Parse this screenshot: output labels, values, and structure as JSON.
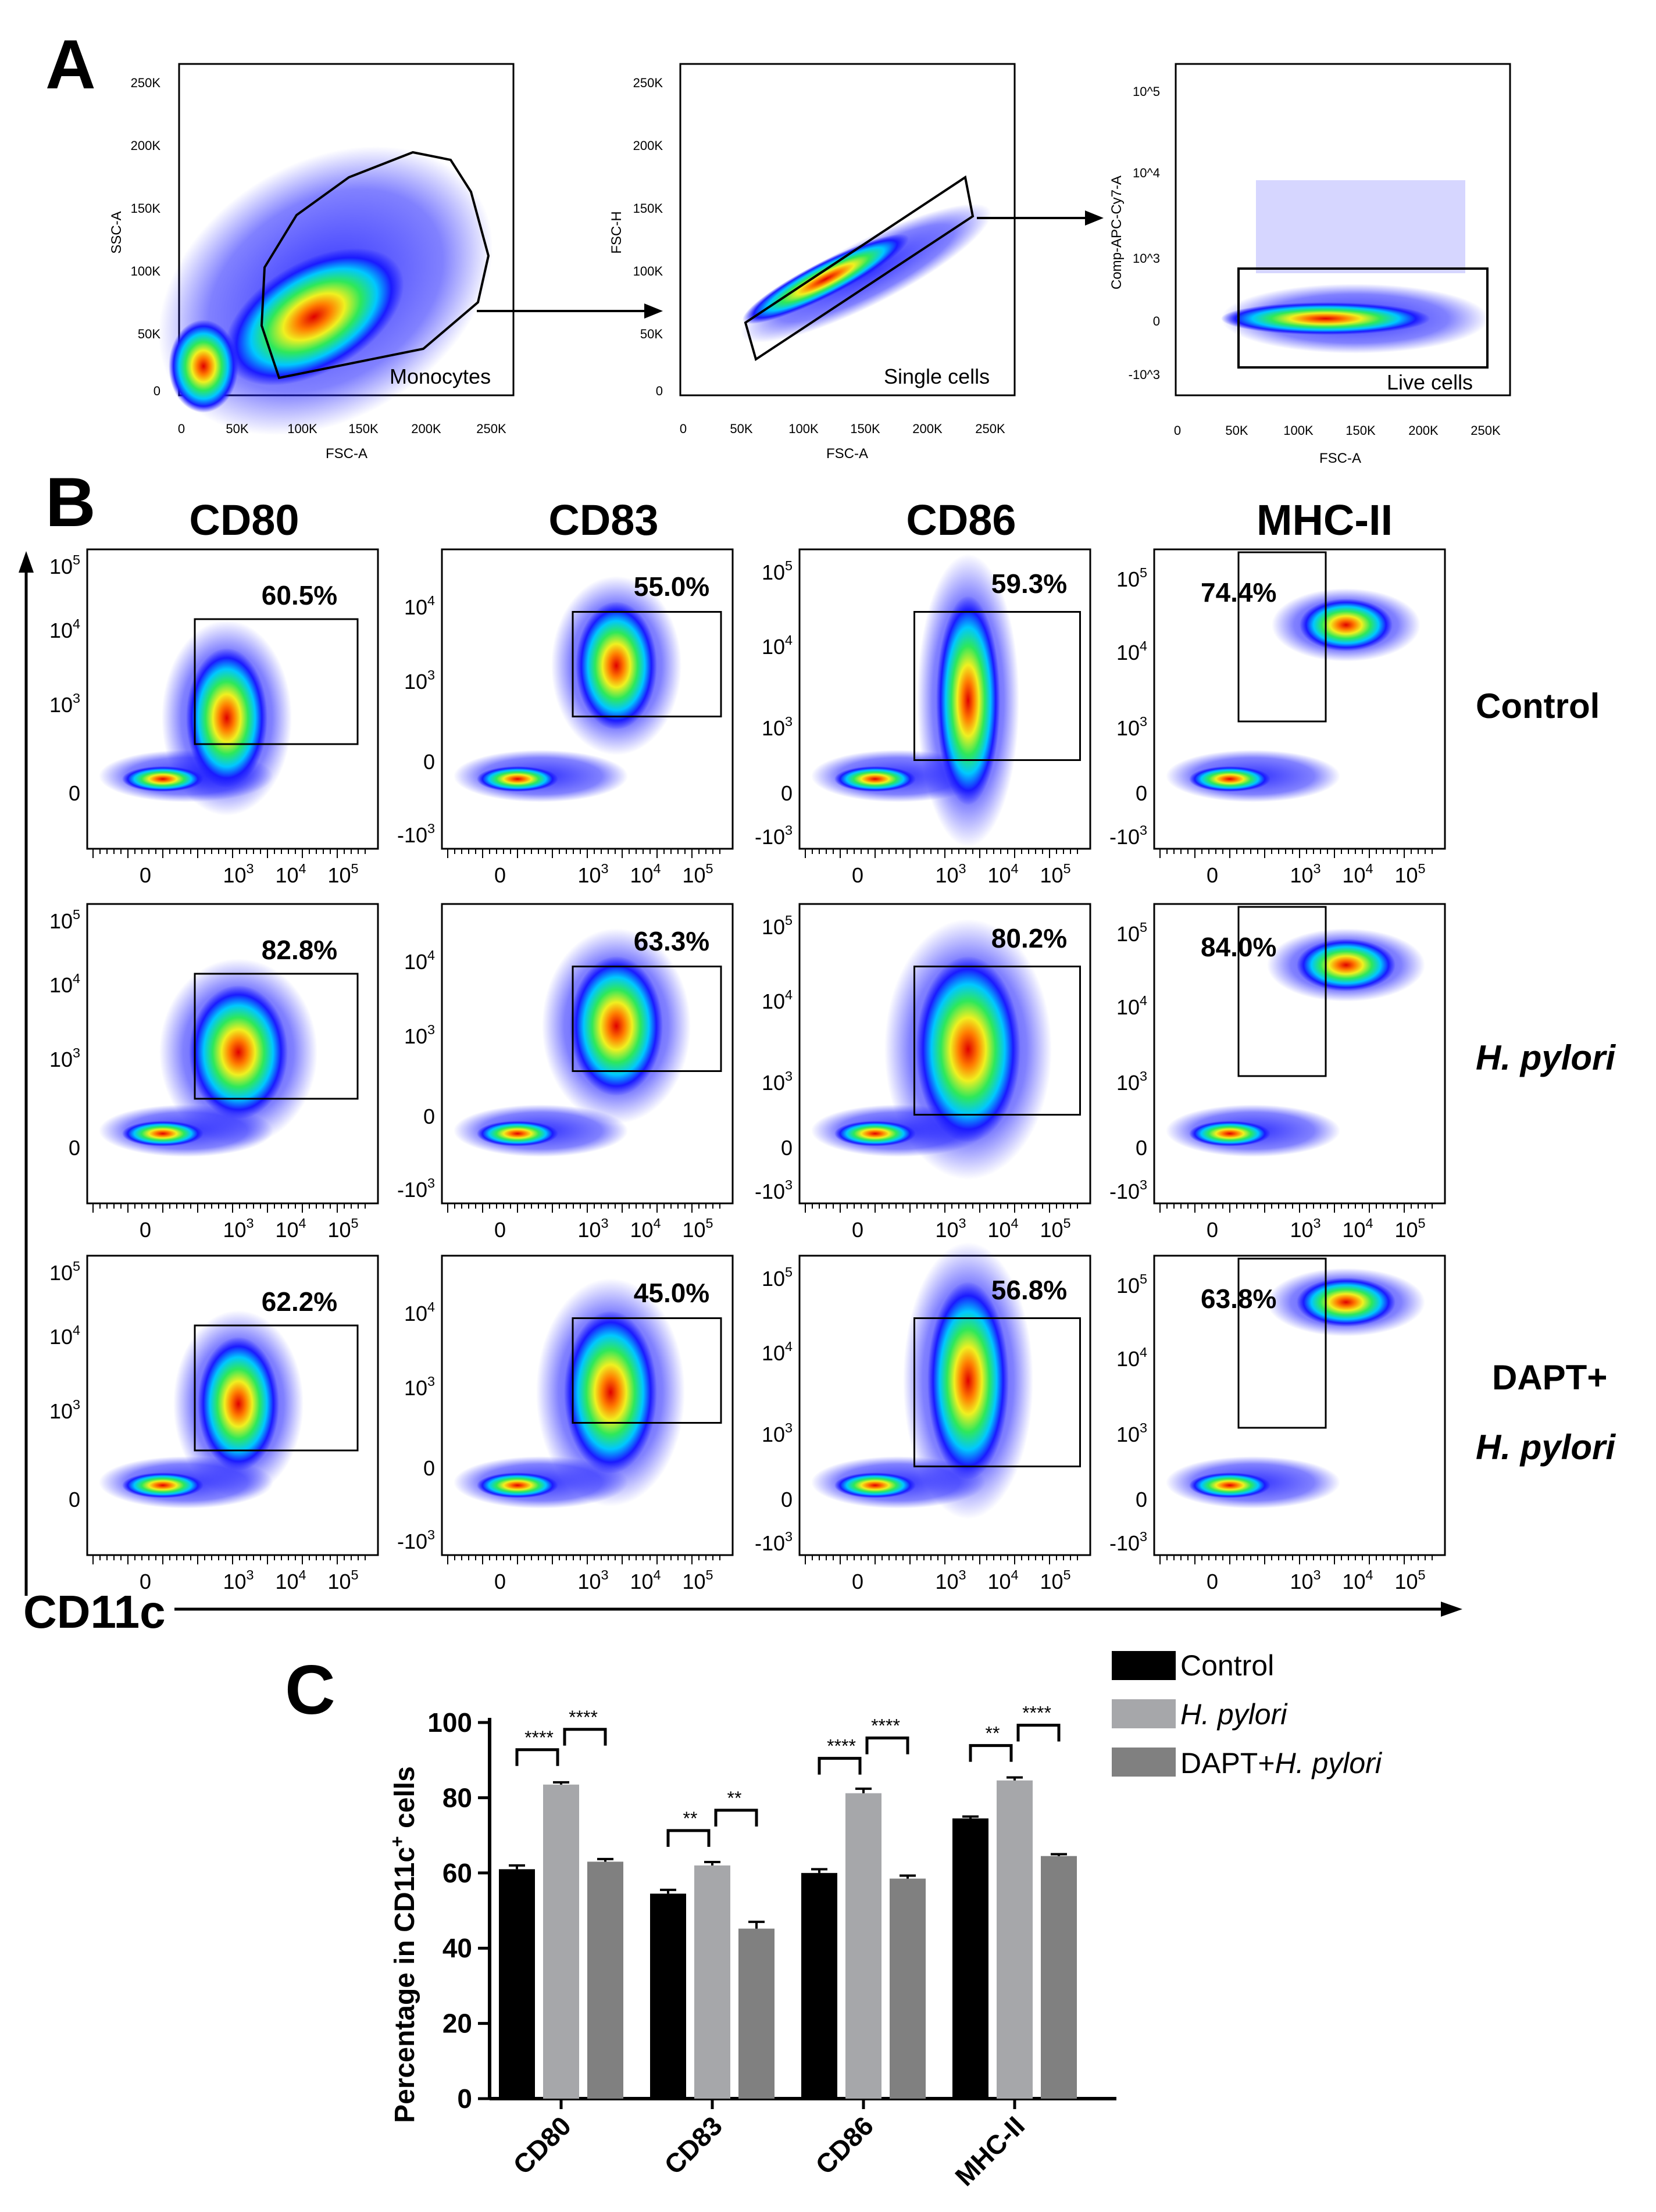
{
  "panel_letters": {
    "a": "A",
    "b": "B",
    "c": "C"
  },
  "colors": {
    "control": "#000000",
    "hpylori": "#a6a7aa",
    "dapt": "#808080",
    "density": [
      "#1a1aff",
      "#00c8ff",
      "#2ee85a",
      "#f0f020",
      "#ff7a00",
      "#e00000"
    ]
  },
  "panel_a": {
    "plots": [
      {
        "ylabel": "SSC-A",
        "xlabel": "FSC-A",
        "gate_label": "Monocytes",
        "yticks": [
          "250K",
          "200K",
          "150K",
          "100K",
          "50K",
          "0"
        ],
        "xticks": [
          "0",
          "50K",
          "100K",
          "150K",
          "200K",
          "250K"
        ]
      },
      {
        "ylabel": "FSC-H",
        "xlabel": "FSC-A",
        "gate_label": "Single cells",
        "yticks": [
          "250K",
          "200K",
          "150K",
          "100K",
          "50K",
          "0"
        ],
        "xticks": [
          "0",
          "50K",
          "100K",
          "150K",
          "200K",
          "250K"
        ]
      },
      {
        "ylabel": "Comp-APC-Cy7-A",
        "xlabel": "FSC-A",
        "gate_label": "Live cells",
        "yticks": [
          "10^5",
          "10^4",
          "10^3",
          "0",
          "-10^3"
        ],
        "xticks": [
          "0",
          "50K",
          "100K",
          "150K",
          "200K",
          "250K"
        ]
      }
    ]
  },
  "panel_b": {
    "columns": [
      "CD80",
      "CD83",
      "CD86",
      "MHC-II"
    ],
    "rows": [
      {
        "label": "Control",
        "italic": false
      },
      {
        "label": "H. pylori",
        "italic": true
      },
      {
        "label_line1": "DAPT+",
        "label_line2": "H. pylori"
      }
    ],
    "percentages": [
      [
        "60.5%",
        "55.0%",
        "59.3%",
        "74.4%"
      ],
      [
        "82.8%",
        "63.3%",
        "80.2%",
        "84.0%"
      ],
      [
        "62.2%",
        "45.0%",
        "56.8%",
        "63.8%"
      ]
    ],
    "x_axis_label": "CD11c",
    "xticks": [
      "0",
      "10^3",
      "10^4",
      "10^5"
    ],
    "yticks_cd80": [
      "10^5",
      "10^4",
      "10^3",
      "0"
    ],
    "yticks_cd83": [
      "10^4",
      "10^3",
      "0",
      "-10^3"
    ],
    "yticks_cd86": [
      "10^5",
      "10^4",
      "10^3",
      "0",
      "-10^3"
    ],
    "yticks_mhc": [
      "10^5",
      "10^4",
      "10^3",
      "0",
      "-10^3"
    ]
  },
  "chart_data": {
    "type": "bar",
    "title": "",
    "categories": [
      "CD80",
      "CD83",
      "CD86",
      "MHC-II"
    ],
    "series": [
      {
        "name": "Control",
        "values": [
          61,
          54.5,
          60,
          74.5
        ],
        "errors": [
          1,
          1,
          1,
          0.5
        ]
      },
      {
        "name": "H. pylori",
        "values": [
          83.5,
          62,
          81.2,
          84.6
        ],
        "errors": [
          0.6,
          0.9,
          1.2,
          0.8
        ]
      },
      {
        "name": "DAPT+H. pylori",
        "values": [
          63,
          45.2,
          58.5,
          64.5
        ],
        "errors": [
          0.7,
          1.8,
          0.8,
          0.5
        ]
      }
    ],
    "legend": {
      "control": "Control",
      "hpylori": "H. pylori",
      "dapt_prefix": "DAPT+",
      "dapt_italic": "H. pylori"
    },
    "ylabel_main": "Percentage in CD11c",
    "ylabel_sup": "+",
    "ylabel_end": " cells",
    "yticks": [
      "100",
      "80",
      "60",
      "40",
      "20",
      "0"
    ],
    "ylim": [
      0,
      100
    ],
    "significance": [
      {
        "category": "CD80",
        "left": "****",
        "right": "****"
      },
      {
        "category": "CD83",
        "left": "**",
        "right": "**"
      },
      {
        "category": "CD86",
        "left": "****",
        "right": "****"
      },
      {
        "category": "MHC-II",
        "left": "**",
        "right": "****"
      }
    ]
  }
}
